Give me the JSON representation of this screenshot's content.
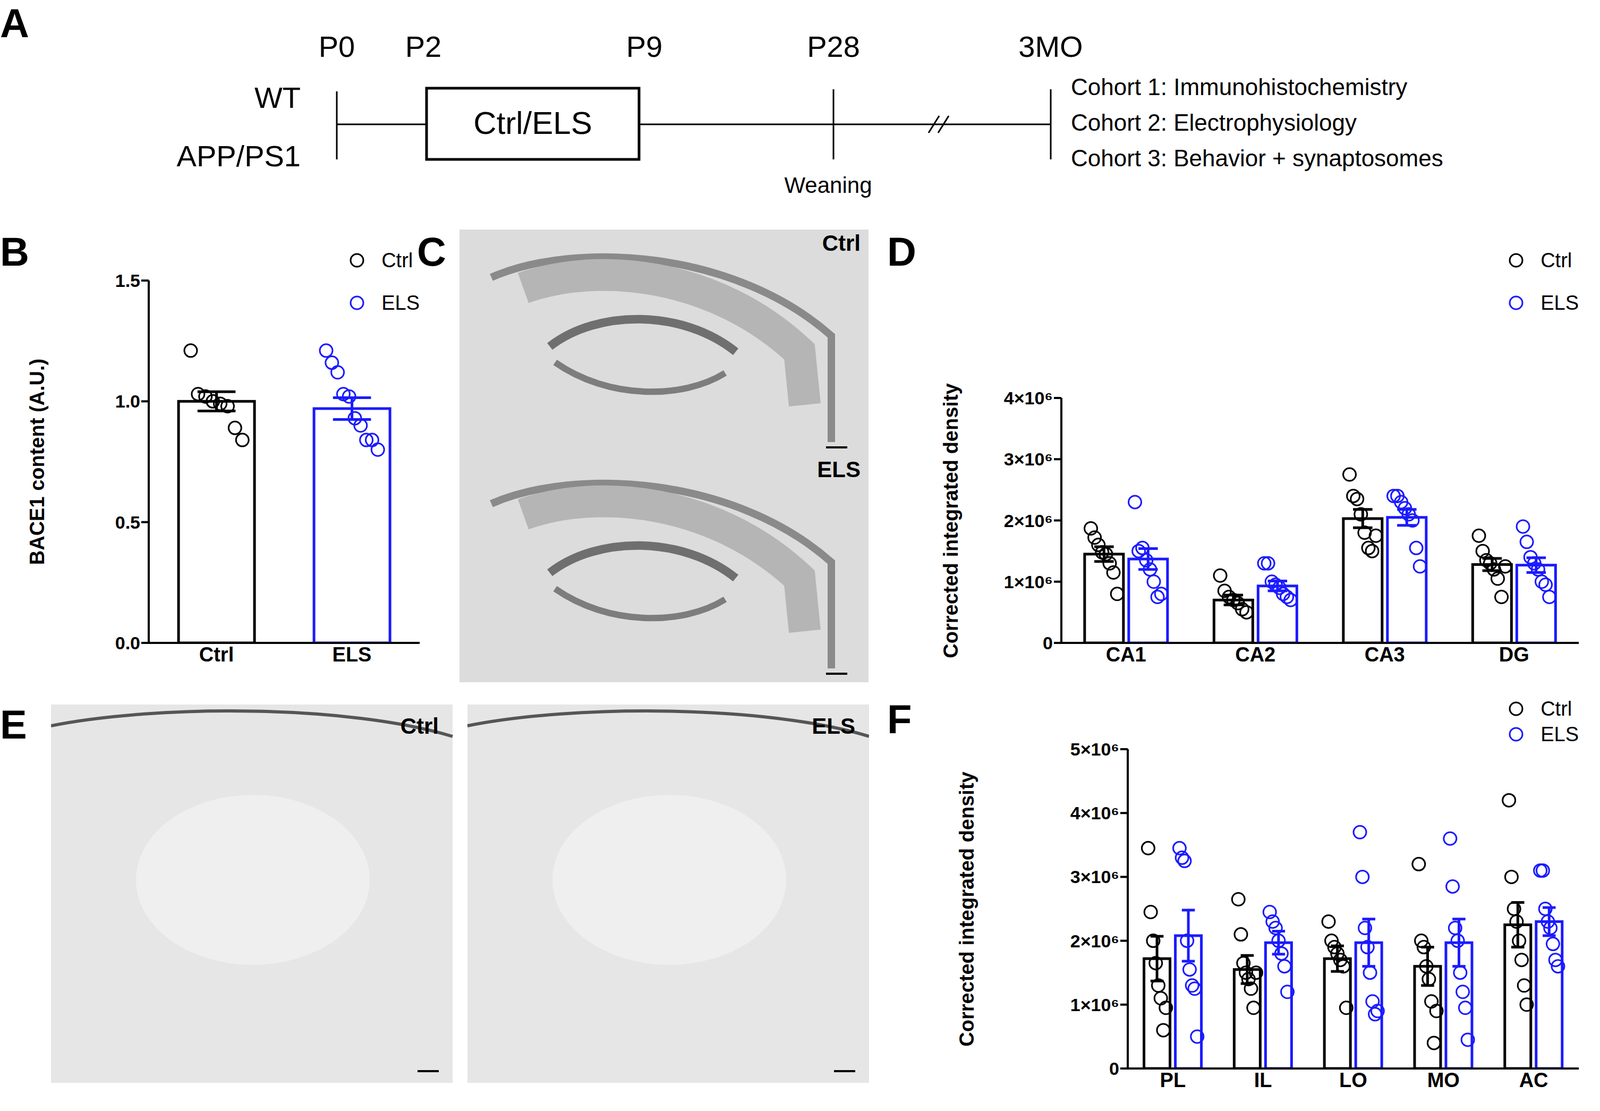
{
  "timeline": {
    "panel_label": "A",
    "time_points": [
      "P0",
      "P2",
      "P9",
      "P28",
      "3MO"
    ],
    "groups": [
      "WT",
      "APP/PS1"
    ],
    "box": "Ctrl/ELS",
    "annotation": "Weaning",
    "cohorts": [
      "Cohort 1: Immunohistochemistry",
      "Cohort 2: Electrophysiology",
      "Cohort 3: Behavior + synaptosomes"
    ]
  },
  "images": [
    {
      "panel_label": "C",
      "labels": [
        "Ctrl",
        "ELS"
      ]
    },
    {
      "panel_label": "E",
      "labels": [
        "Ctrl",
        "ELS"
      ]
    }
  ],
  "chart_data": [
    {
      "panel_label": "B",
      "type": "bar",
      "y_label": "BACE1 content (A.U.)",
      "categories": [
        "Ctrl",
        "ELS"
      ],
      "ylim": [
        0,
        1.5
      ],
      "yticks": [
        {
          "value": 0,
          "label": "0.0"
        },
        {
          "value": 0.5,
          "label": "0.5"
        },
        {
          "value": 1,
          "label": "1.0"
        },
        {
          "value": 1.5,
          "label": "1.5"
        }
      ],
      "legend": "top-right",
      "colors": [
        "#000000",
        "#1a1aff"
      ],
      "values": [
        1.0,
        0.97
      ],
      "errors": [
        0.04,
        0.045
      ],
      "points": [
        [
          1.21,
          1.03,
          1.02,
          1.0,
          0.99,
          0.98,
          0.89,
          0.84
        ],
        [
          1.21,
          1.16,
          1.12,
          1.03,
          1.02,
          0.93,
          0.9,
          0.84,
          0.84,
          0.8
        ]
      ]
    },
    {
      "panel_label": "D",
      "type": "bar",
      "y_label": "Corrected integrated density",
      "categories": [
        "CA1",
        "CA2",
        "CA3",
        "DG"
      ],
      "ylim": [
        0,
        4000000
      ],
      "yticks": [
        0,
        {
          "value": 1000000,
          "label": "1×10⁶"
        },
        {
          "value": 2000000,
          "label": "2×10⁶"
        },
        {
          "value": 3000000,
          "label": "3×10⁶"
        },
        {
          "value": 4000000,
          "label": "4×10⁶"
        }
      ],
      "legend": "top-right",
      "series": [
        {
          "name": "Ctrl",
          "color": "#000000",
          "values": [
            1450000,
            700000,
            2030000,
            1280000
          ],
          "errors": [
            120000,
            80000,
            150000,
            100000
          ],
          "points": [
            [
              1870000,
              1720000,
              1600000,
              1480000,
              1450000,
              1300000,
              1150000,
              800000
            ],
            [
              1100000,
              850000,
              750000,
              700000,
              650000,
              550000,
              500000
            ],
            [
              2750000,
              2400000,
              2350000,
              2100000,
              1800000,
              1550000,
              1500000,
              1750000
            ],
            [
              1750000,
              1500000,
              1350000,
              1300000,
              1200000,
              1050000,
              750000,
              1250000
            ]
          ]
        },
        {
          "name": "ELS",
          "color": "#1a1aff",
          "values": [
            1370000,
            930000,
            2050000,
            1270000
          ],
          "errors": [
            170000,
            80000,
            130000,
            120000
          ],
          "points": [
            [
              2300000,
              1500000,
              1550000,
              1350000,
              1200000,
              1000000,
              750000,
              800000
            ],
            [
              1300000,
              1300000,
              1000000,
              950000,
              900000,
              800000,
              750000,
              700000
            ],
            [
              2400000,
              2400000,
              2300000,
              2200000,
              2100000,
              2000000,
              1550000,
              1250000
            ],
            [
              1900000,
              1650000,
              1400000,
              1300000,
              1200000,
              1000000,
              950000,
              750000
            ]
          ]
        }
      ]
    },
    {
      "panel_label": "F",
      "type": "bar",
      "y_label": "Corrected integrated density",
      "categories": [
        "PL",
        "IL",
        "LO",
        "MO",
        "AC"
      ],
      "ylim": [
        0,
        5000000
      ],
      "yticks": [
        0,
        {
          "value": 1000000,
          "label": "1×10⁶"
        },
        {
          "value": 2000000,
          "label": "2×10⁶"
        },
        {
          "value": 3000000,
          "label": "3×10⁶"
        },
        {
          "value": 4000000,
          "label": "4×10⁶"
        },
        {
          "value": 5000000,
          "label": "5×10⁶"
        }
      ],
      "legend": "top-right",
      "series": [
        {
          "name": "Ctrl",
          "color": "#000000",
          "values": [
            1720000,
            1550000,
            1720000,
            1600000,
            2250000
          ],
          "errors": [
            350000,
            220000,
            200000,
            300000,
            350000
          ],
          "points": [
            [
              3450000,
              2450000,
              2000000,
              1650000,
              1300000,
              1100000,
              600000,
              950000
            ],
            [
              2650000,
              2100000,
              1650000,
              1500000,
              1400000,
              1250000,
              950000,
              1500000
            ],
            [
              2300000,
              2000000,
              1900000,
              1800000,
              1700000,
              1600000,
              950000
            ],
            [
              3200000,
              2000000,
              1900000,
              1600000,
              1400000,
              1050000,
              400000,
              900000
            ],
            [
              4200000,
              3000000,
              2500000,
              2300000,
              2000000,
              1700000,
              1300000,
              1000000
            ]
          ]
        },
        {
          "name": "ELS",
          "color": "#1a1aff",
          "values": [
            2080000,
            1970000,
            1970000,
            1970000,
            2300000
          ],
          "errors": [
            400000,
            180000,
            370000,
            370000,
            220000
          ],
          "points": [
            [
              3450000,
              3300000,
              3250000,
              2000000,
              1550000,
              1300000,
              1250000,
              500000
            ],
            [
              2450000,
              2300000,
              2200000,
              2000000,
              1800000,
              1600000,
              1200000
            ],
            [
              3700000,
              3000000,
              2200000,
              1900000,
              1500000,
              1050000,
              850000,
              900000
            ],
            [
              3600000,
              2850000,
              2200000,
              2000000,
              1500000,
              1200000,
              950000,
              450000
            ],
            [
              3100000,
              3100000,
              2500000,
              2300000,
              2200000,
              1950000,
              1700000,
              1600000
            ]
          ]
        }
      ]
    }
  ]
}
